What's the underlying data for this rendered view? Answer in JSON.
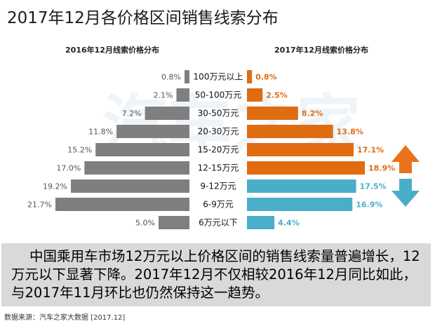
{
  "title": "2017年12月各价格区间销售线索分布",
  "watermark": "汽车之家",
  "summary": "中国乘用车市场12万元以上价格区间的销售线索量普遍增长，12万元以下显著下降。2017年12月不仅相较2016年12月同比如此，与2017年11月环比也仍然保持这一趋势。",
  "source": "数据来源：汽车之家大数据  [2017.12]",
  "colors": {
    "left_bar": "#7f7f7f",
    "right_up": "#e06c12",
    "right_down": "#4aaec8",
    "arrow_up": "#e8731a",
    "arrow_down": "#4aaec8",
    "summary_bg": "#d9d9d9"
  },
  "chart_data": {
    "type": "bar",
    "orientation": "horizontal-butterfly",
    "categories": [
      "100万元以上",
      "50-100万元",
      "30-50万元",
      "20-30万元",
      "15-20万元",
      "12-15万元",
      "9-12万元",
      "6-9万元",
      "6万元以下"
    ],
    "unit": "%",
    "series": [
      {
        "name": "2016年12月线索价格分布",
        "values": [
          0.8,
          2.1,
          7.2,
          11.8,
          15.2,
          17.0,
          19.2,
          21.7,
          5.0
        ]
      },
      {
        "name": "2017年12月线索价格分布",
        "values": [
          0.8,
          2.5,
          8.2,
          13.8,
          17.1,
          18.9,
          17.5,
          16.9,
          4.4
        ]
      }
    ],
    "trend": [
      "up",
      "up",
      "up",
      "up",
      "up",
      "up",
      "down",
      "down",
      "down"
    ]
  }
}
